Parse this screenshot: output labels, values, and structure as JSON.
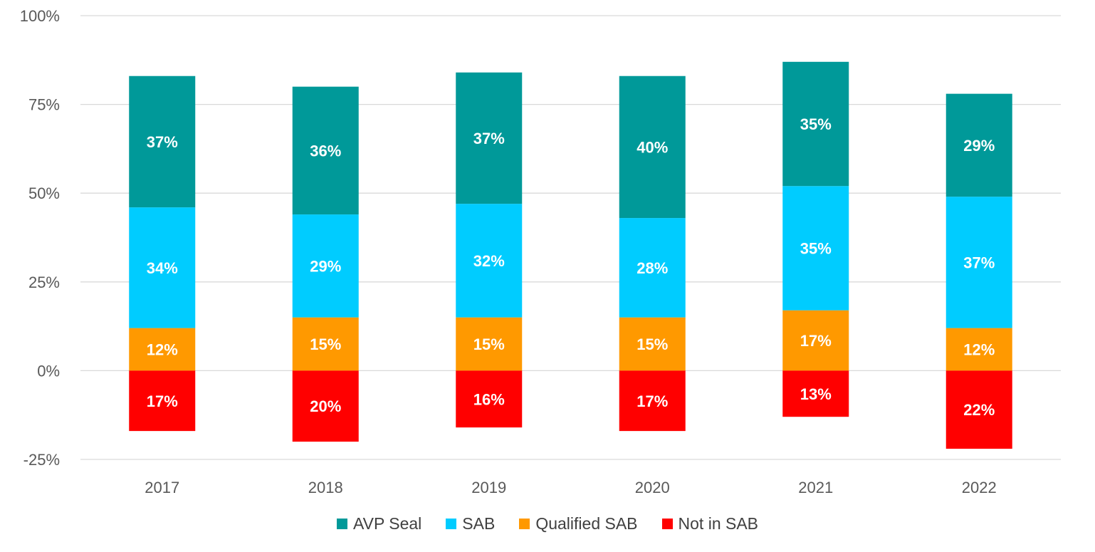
{
  "chart_data": {
    "type": "bar",
    "stacked": true,
    "categories": [
      "2017",
      "2018",
      "2019",
      "2020",
      "2021",
      "2022"
    ],
    "series": [
      {
        "name": "AVP Seal",
        "color": "#009999",
        "values": [
          37,
          36,
          37,
          40,
          35,
          29
        ],
        "labels": [
          "37%",
          "36%",
          "37%",
          "40%",
          "35%",
          "29%"
        ]
      },
      {
        "name": "SAB",
        "color": "#00CCFF",
        "values": [
          34,
          29,
          32,
          28,
          35,
          37
        ],
        "labels": [
          "34%",
          "29%",
          "32%",
          "28%",
          "35%",
          "37%"
        ]
      },
      {
        "name": "Qualified SAB",
        "color": "#FF9900",
        "values": [
          12,
          15,
          15,
          15,
          17,
          12
        ],
        "labels": [
          "12%",
          "15%",
          "15%",
          "15%",
          "17%",
          "12%"
        ]
      },
      {
        "name": "Not in SAB",
        "color": "#FF0000",
        "values": [
          -17,
          -20,
          -16,
          -17,
          -13,
          -22
        ],
        "labels": [
          "17%",
          "20%",
          "16%",
          "17%",
          "13%",
          "22%"
        ]
      }
    ],
    "stack_order_positive": [
      "Qualified SAB",
      "SAB",
      "AVP Seal"
    ],
    "ylim": [
      -25,
      100
    ],
    "yticks": [
      -25,
      0,
      25,
      50,
      75,
      100
    ],
    "ytick_labels": [
      "-25%",
      "0%",
      "25%",
      "50%",
      "75%",
      "100%"
    ],
    "grid": true,
    "legend_position": "bottom",
    "title": "",
    "xlabel": "",
    "ylabel": ""
  }
}
